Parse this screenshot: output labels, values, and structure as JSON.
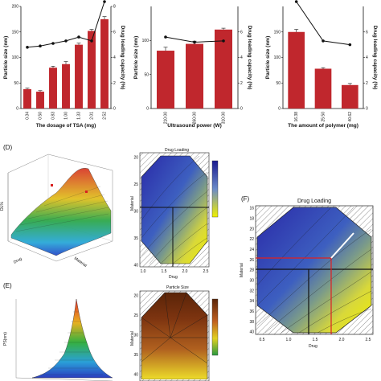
{
  "colors": {
    "bar": "#c0272d",
    "line": "#111111"
  },
  "chart_data": [
    {
      "type": "bar",
      "panel": "A",
      "categories": [
        "0.34",
        "0.50",
        "0.83",
        "1.00",
        "1.33",
        "2.01",
        "2.52"
      ],
      "series": [
        {
          "type": "bar",
          "values": [
            38,
            33,
            80,
            87,
            125,
            152,
            175
          ],
          "errors": [
            2,
            2,
            3,
            5,
            3,
            3,
            5
          ]
        },
        {
          "type": "line",
          "values": [
            4.8,
            4.9,
            5.1,
            5.3,
            5.6,
            5.3,
            8.5
          ]
        }
      ],
      "xlabel": "The dosage of TSA (mg)",
      "ylabel": "Particle size (nm)",
      "y2label": "Drug loading capacity (%)",
      "ylim": [
        0,
        200
      ],
      "y2lim": [
        0,
        8
      ],
      "yticks": [
        "0",
        "50",
        "100",
        "150",
        "200"
      ],
      "y2ticks": [
        "0",
        "2",
        "4",
        "6",
        "8"
      ]
    },
    {
      "type": "bar",
      "panel": "B",
      "categories": [
        "210.00",
        "260.00",
        "310.00"
      ],
      "series": [
        {
          "type": "bar",
          "values": [
            85,
            95,
            116
          ],
          "errors": [
            5,
            4,
            2
          ]
        },
        {
          "type": "line",
          "values": [
            5.6,
            5.2,
            5.3
          ]
        }
      ],
      "xlabel": "Ultrasound power (W)",
      "ylabel": "Particle size (nm)",
      "y2label": "Drug loading capacity (%)",
      "ylim": [
        0,
        150
      ],
      "y2lim": [
        0,
        8
      ],
      "yticks": [
        "0",
        "50",
        "100"
      ],
      "y2ticks": [
        "0",
        "2",
        "4",
        "6"
      ]
    },
    {
      "type": "bar",
      "panel": "C",
      "categories": [
        "16.38",
        "25.50",
        "40.62"
      ],
      "series": [
        {
          "type": "bar",
          "values": [
            150,
            78,
            46
          ],
          "errors": [
            5,
            2,
            3
          ]
        },
        {
          "type": "line",
          "values": [
            9.2,
            5.3,
            5.0
          ]
        }
      ],
      "xlabel": "The amount of polymer (mg)",
      "ylabel": "Particle size (nm)",
      "y2label": "Drug loading capacity (%)",
      "ylim": [
        0,
        200
      ],
      "y2lim": [
        0,
        8
      ],
      "yticks": [
        "0",
        "50",
        "100",
        "150"
      ],
      "y2ticks": [
        "0",
        "2",
        "4",
        "6"
      ]
    }
  ],
  "panels": {
    "d_label": "(D)",
    "e_label": "(E)",
    "f_label": "(F)",
    "d_contour_title": "Drug Loading",
    "e_contour_title": "Particle Size",
    "f_title": "Drug Loading",
    "d_axis_drug": "Drug",
    "d_axis_material": "Material",
    "d_axis_dl": "DL%",
    "e_axis_ps": "PS(nm)",
    "contour_ylabel": "Material",
    "contour_xlabel": "Drug",
    "contour_xticks": [
      "1.0",
      "1.5",
      "2.0",
      "2.5"
    ],
    "contour_yticks": [
      "20",
      "25",
      "30",
      "35",
      "40"
    ],
    "e_contour_yticks": [
      "20",
      "25",
      "30",
      "35",
      "40"
    ],
    "f_xticks": [
      "0.5",
      "1.0",
      "1.5",
      "2.0",
      "2.5"
    ],
    "f_yticks": [
      "16",
      "18",
      "20",
      "22",
      "24",
      "26",
      "28",
      "30",
      "32",
      "34",
      "36",
      "38",
      "40"
    ],
    "f_xlabel": "Drug",
    "f_ylabel": "Material"
  }
}
